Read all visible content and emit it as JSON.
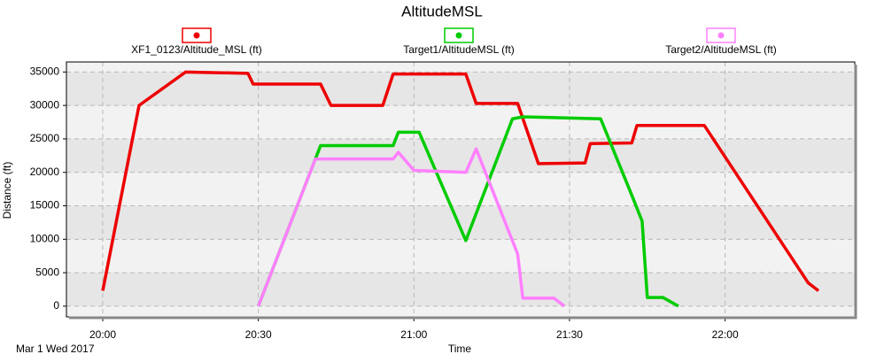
{
  "chart_data": {
    "type": "line",
    "title": "AltitudeMSL",
    "x_label": "Time",
    "y_label": "Distance (ft)",
    "date_label": "Mar 1 Wed 2017",
    "xlim": [
      "19:53",
      "22:25"
    ],
    "xticks": [
      "20:00",
      "20:30",
      "21:00",
      "21:30",
      "22:00"
    ],
    "ylim": [
      -1600,
      36500
    ],
    "yticks": [
      0,
      5000,
      10000,
      15000,
      20000,
      25000,
      30000,
      35000
    ],
    "grid": true,
    "series": [
      {
        "name": "XF1_0123/Altitude_MSL (ft)",
        "color": "#ee0000",
        "x": [
          "20:00",
          "20:07",
          "20:16",
          "20:28",
          "20:29",
          "20:42",
          "20:44",
          "20:54",
          "20:56",
          "21:10",
          "21:12",
          "21:20",
          "21:24",
          "21:33",
          "21:34",
          "21:42",
          "21:43",
          "21:56",
          "22:16",
          "22:18"
        ],
        "values": [
          2300,
          30000,
          35000,
          34800,
          33200,
          33200,
          30000,
          30000,
          34700,
          34700,
          30300,
          30300,
          21300,
          21400,
          24300,
          24400,
          27000,
          27000,
          3500,
          2300
        ]
      },
      {
        "name": "Target1/AltitudeMSL (ft)",
        "color": "#00cc00",
        "x": [
          "20:30",
          "20:42",
          "20:56",
          "20:57",
          "21:01",
          "21:10",
          "21:19",
          "21:21",
          "21:36",
          "21:42",
          "21:44",
          "21:45",
          "21:48",
          "21:51"
        ],
        "values": [
          0,
          24000,
          24000,
          26000,
          26000,
          9800,
          28000,
          28300,
          28000,
          16600,
          12700,
          1300,
          1300,
          0
        ]
      },
      {
        "name": "Target2/AltitudeMSL (ft)",
        "color": "#ff80ff",
        "x": [
          "20:30",
          "20:41",
          "20:56",
          "20:57",
          "21:00",
          "21:10",
          "21:12",
          "21:20",
          "21:21",
          "21:27",
          "21:29"
        ],
        "values": [
          0,
          22000,
          22000,
          23000,
          20300,
          20000,
          23500,
          7800,
          1200,
          1200,
          0
        ]
      }
    ]
  }
}
